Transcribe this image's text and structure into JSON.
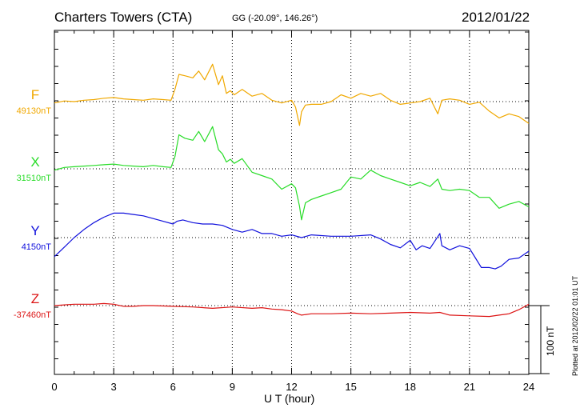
{
  "header": {
    "station": "Charters Towers (CTA)",
    "coords": "GG (-20.09°, 146.26°)",
    "date": "2012/01/22"
  },
  "footer": {
    "plotted_note": "Plotted at 2012/02/22 01:01 UT",
    "scale_label": "100 nT"
  },
  "chart_data": {
    "type": "line",
    "title": "Charters Towers (CTA)",
    "xlabel": "U T (hour)",
    "ylabel": "",
    "xlim": [
      0,
      24
    ],
    "xticks": [
      "0",
      "3",
      "6",
      "9",
      "12",
      "15",
      "18",
      "21",
      "24"
    ],
    "scale_bar_nT": 100,
    "grid": true,
    "series": [
      {
        "name": "F",
        "baseline_label": "49130nT",
        "color": "#f0a800",
        "x": [
          0,
          0.5,
          1,
          1.5,
          2,
          2.5,
          3,
          3.5,
          4,
          4.5,
          5,
          5.5,
          5.9,
          6.1,
          6.3,
          6.6,
          7,
          7.3,
          7.6,
          8,
          8.3,
          8.5,
          8.7,
          8.9,
          9.1,
          9.5,
          10,
          10.5,
          11,
          11.5,
          12,
          12.2,
          12.4,
          12.5,
          12.7,
          13,
          13.5,
          14,
          14.5,
          15,
          15.5,
          16,
          16.5,
          17,
          17.5,
          18,
          18.5,
          19,
          19.4,
          19.6,
          20,
          20.5,
          21,
          21.5,
          22,
          22.5,
          23,
          23.5,
          24
        ],
        "values": [
          -2,
          1,
          0,
          2,
          3,
          5,
          6,
          4,
          3,
          2,
          4,
          3,
          2,
          18,
          40,
          38,
          35,
          45,
          32,
          55,
          25,
          38,
          12,
          16,
          10,
          18,
          8,
          12,
          2,
          -2,
          2,
          -8,
          -35,
          -15,
          -5,
          -4,
          -4,
          0,
          10,
          5,
          12,
          8,
          12,
          2,
          -4,
          -2,
          0,
          5,
          -18,
          2,
          4,
          2,
          -4,
          -1,
          -14,
          -24,
          -18,
          -22,
          -32
        ]
      },
      {
        "name": "X",
        "baseline_label": "31510nT",
        "color": "#28dc28",
        "x": [
          0,
          0.5,
          1,
          1.5,
          2,
          2.5,
          3,
          3.5,
          4,
          4.5,
          5,
          5.5,
          5.9,
          6.1,
          6.3,
          6.6,
          7,
          7.3,
          7.6,
          8,
          8.3,
          8.5,
          8.7,
          8.9,
          9.1,
          9.5,
          10,
          10.5,
          11,
          11.5,
          12,
          12.2,
          12.4,
          12.5,
          12.7,
          13,
          13.5,
          14,
          14.5,
          15,
          15.5,
          16,
          16.5,
          17,
          17.5,
          18,
          18.5,
          19,
          19.4,
          19.6,
          20,
          20.5,
          21,
          21.5,
          22,
          22.5,
          23,
          23.5,
          24
        ],
        "values": [
          -2,
          2,
          3,
          4,
          5,
          6,
          7,
          5,
          4,
          3,
          5,
          3,
          2,
          18,
          50,
          45,
          42,
          55,
          40,
          62,
          28,
          22,
          10,
          14,
          8,
          15,
          -5,
          -10,
          -15,
          -30,
          -22,
          -28,
          -55,
          -75,
          -50,
          -45,
          -40,
          -35,
          -30,
          -12,
          -15,
          -2,
          -10,
          -15,
          -20,
          -25,
          -20,
          -26,
          -15,
          -30,
          -32,
          -30,
          -32,
          -42,
          -42,
          -58,
          -52,
          -48,
          -56
        ]
      },
      {
        "name": "Y",
        "baseline_label": "4150nT",
        "color": "#1010dc",
        "x": [
          0,
          0.5,
          1,
          1.5,
          2,
          2.5,
          3,
          3.5,
          4,
          4.5,
          5,
          5.5,
          6,
          6.2,
          6.5,
          7,
          7.5,
          8,
          8.5,
          9,
          9.5,
          10,
          10.5,
          11,
          11.5,
          12,
          12.5,
          13,
          14,
          15,
          16,
          16.5,
          17,
          17.5,
          18,
          18.3,
          18.6,
          19,
          19.5,
          19.6,
          20,
          20.5,
          21,
          21.3,
          21.6,
          22,
          22.3,
          22.6,
          23,
          23.5,
          24
        ],
        "values": [
          -28,
          -14,
          0,
          12,
          22,
          30,
          36,
          36,
          34,
          32,
          28,
          24,
          20,
          24,
          26,
          22,
          20,
          20,
          18,
          12,
          8,
          12,
          6,
          6,
          2,
          4,
          0,
          4,
          2,
          2,
          4,
          -2,
          -10,
          -15,
          -4,
          -18,
          -12,
          -16,
          6,
          -12,
          -18,
          -12,
          -16,
          -30,
          -44,
          -44,
          -46,
          -42,
          -32,
          -30,
          -20
        ]
      },
      {
        "name": "Z",
        "baseline_label": "-37460nT",
        "color": "#dc1414",
        "x": [
          0,
          0.5,
          1,
          1.5,
          2,
          2.5,
          3,
          3.5,
          4,
          4.5,
          5,
          6,
          7,
          8,
          9,
          10,
          10.5,
          11,
          11.5,
          12,
          12.3,
          12.5,
          13,
          14,
          15,
          16,
          17,
          18,
          19,
          19.5,
          20,
          21,
          22,
          22.5,
          23,
          23.5,
          24
        ],
        "values": [
          0,
          1,
          2,
          2,
          2,
          3,
          2,
          -1,
          -1,
          0,
          0,
          -1,
          -2,
          -4,
          -2,
          -4,
          -3,
          -5,
          -6,
          -8,
          -12,
          -14,
          -12,
          -12,
          -11,
          -12,
          -11,
          -10,
          -11,
          -10,
          -14,
          -15,
          -16,
          -14,
          -12,
          -6,
          2
        ]
      }
    ]
  }
}
